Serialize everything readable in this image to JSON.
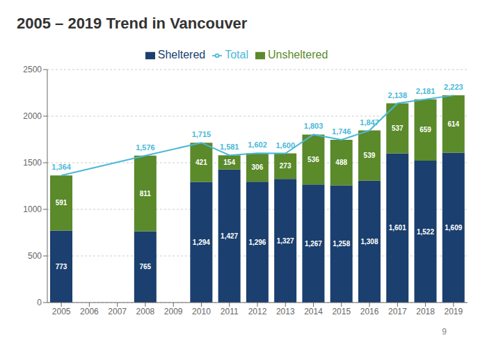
{
  "chart_data": {
    "type": "bar",
    "title": "2005 – 2019 Trend in Vancouver",
    "categories": [
      "2005",
      "2006",
      "2007",
      "2008",
      "2009",
      "2010",
      "2011",
      "2012",
      "2013",
      "2014",
      "2015",
      "2016",
      "2017",
      "2018",
      "2019"
    ],
    "series": [
      {
        "name": "Sheltered",
        "color": "#1b3f6e",
        "values": [
          773,
          null,
          null,
          765,
          null,
          1294,
          1427,
          1296,
          1327,
          1267,
          1258,
          1308,
          1601,
          1522,
          1609
        ],
        "value_labels": [
          "773",
          null,
          null,
          "765",
          null,
          "1,294",
          "1,427",
          "1,296",
          "1,327",
          "1,267",
          "1,258",
          "1,308",
          "1,601",
          "1,522",
          "1,609"
        ]
      },
      {
        "name": "Unsheltered",
        "color": "#5a8a2a",
        "values": [
          591,
          null,
          null,
          811,
          null,
          421,
          154,
          306,
          273,
          536,
          488,
          539,
          537,
          659,
          614
        ],
        "value_labels": [
          "591",
          null,
          null,
          "811",
          null,
          "421",
          "154",
          "306",
          "273",
          "536",
          "488",
          "539",
          "537",
          "659",
          "614"
        ]
      },
      {
        "name": "Total",
        "type": "line",
        "color": "#4ab8d8",
        "values": [
          1364,
          null,
          null,
          1576,
          null,
          1715,
          1581,
          1602,
          1600,
          1803,
          1746,
          1847,
          2138,
          2181,
          2223
        ],
        "value_labels": [
          "1,364",
          null,
          null,
          "1,576",
          null,
          "1,715",
          "1,581",
          "1,602",
          "1,600",
          "1,803",
          "1,746",
          "1,847",
          "2,138",
          "2,181",
          "2,223"
        ]
      }
    ],
    "stacked": true,
    "data_labels": true,
    "ylim": [
      0,
      2500
    ],
    "yticks": [
      0,
      500,
      1000,
      1500,
      2000,
      2500
    ],
    "grid": true,
    "legend": "top",
    "annotations": [
      "9"
    ]
  }
}
